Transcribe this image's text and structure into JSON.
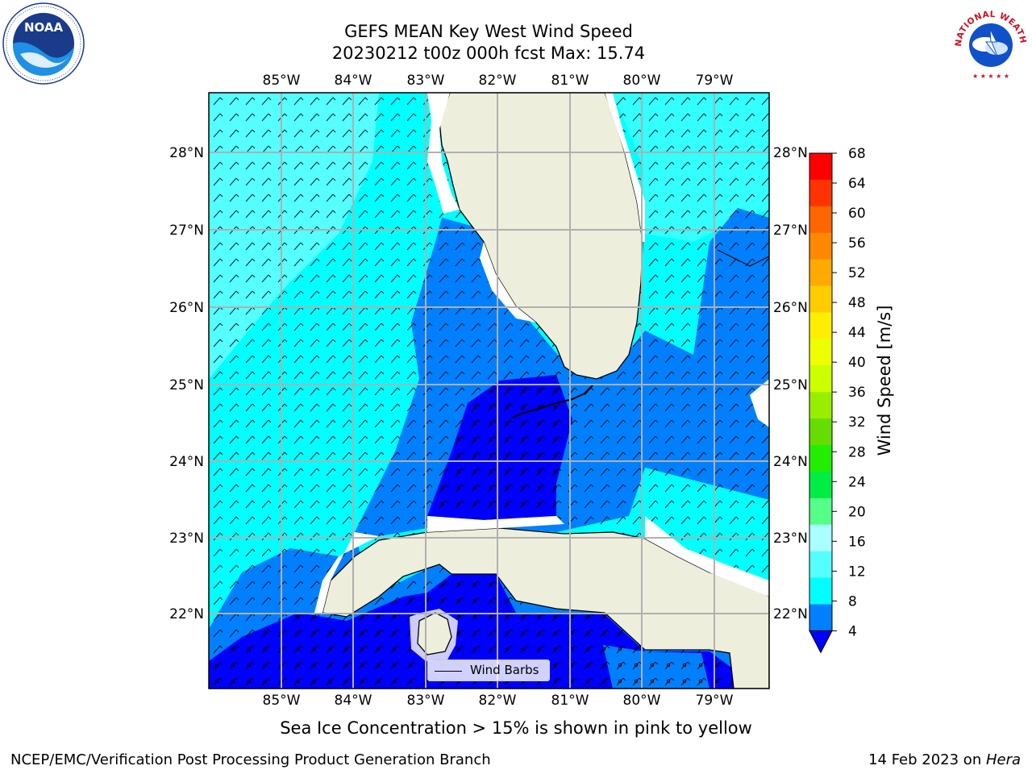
{
  "title": {
    "line1": "GEFS MEAN Key West Wind Speed",
    "line2": "20230212 t00z 000h fcst   Max: 15.74"
  },
  "map": {
    "lon_ticks": [
      "85°W",
      "84°W",
      "83°W",
      "82°W",
      "81°W",
      "80°W",
      "79°W"
    ],
    "lat_ticks": [
      "28°N",
      "27°N",
      "26°N",
      "25°N",
      "24°N",
      "23°N",
      "22°N"
    ],
    "legend_label": "Wind Barbs",
    "colors": {
      "land": "#eeeedd",
      "speed_4_8": "#0080ff",
      "speed_0_4": "#0000ff",
      "speed_8_12": "#00ffff",
      "speed_12_16": "#55ffff",
      "grid": "#b0b0b0"
    }
  },
  "colorbar": {
    "title": "Wind Speed [m/s]",
    "ticks": [
      "68",
      "64",
      "60",
      "56",
      "52",
      "48",
      "44",
      "40",
      "36",
      "32",
      "28",
      "24",
      "20",
      "16",
      "12",
      "8",
      "4"
    ],
    "colors": [
      "#ff0000",
      "#ff3300",
      "#ff6600",
      "#ff8800",
      "#ffaa00",
      "#ffcc00",
      "#ffee00",
      "#eeff00",
      "#ccff00",
      "#99ee00",
      "#66dd00",
      "#22ee00",
      "#00ee44",
      "#55ff88",
      "#aaffff",
      "#55ffff",
      "#00ffff",
      "#0080ff"
    ],
    "extend_color": "#0000ff"
  },
  "ice_note": "Sea Ice Concentration > 15% is shown in pink to yellow",
  "footer": {
    "left": "NCEP/EMC/Verification Post Processing Product Generation Branch",
    "date": "14 Feb 2023 on ",
    "host": "Hera"
  },
  "logos": {
    "noaa_text": "NOAA",
    "nws_text": "NATIONAL WEATHER SERVICE"
  }
}
